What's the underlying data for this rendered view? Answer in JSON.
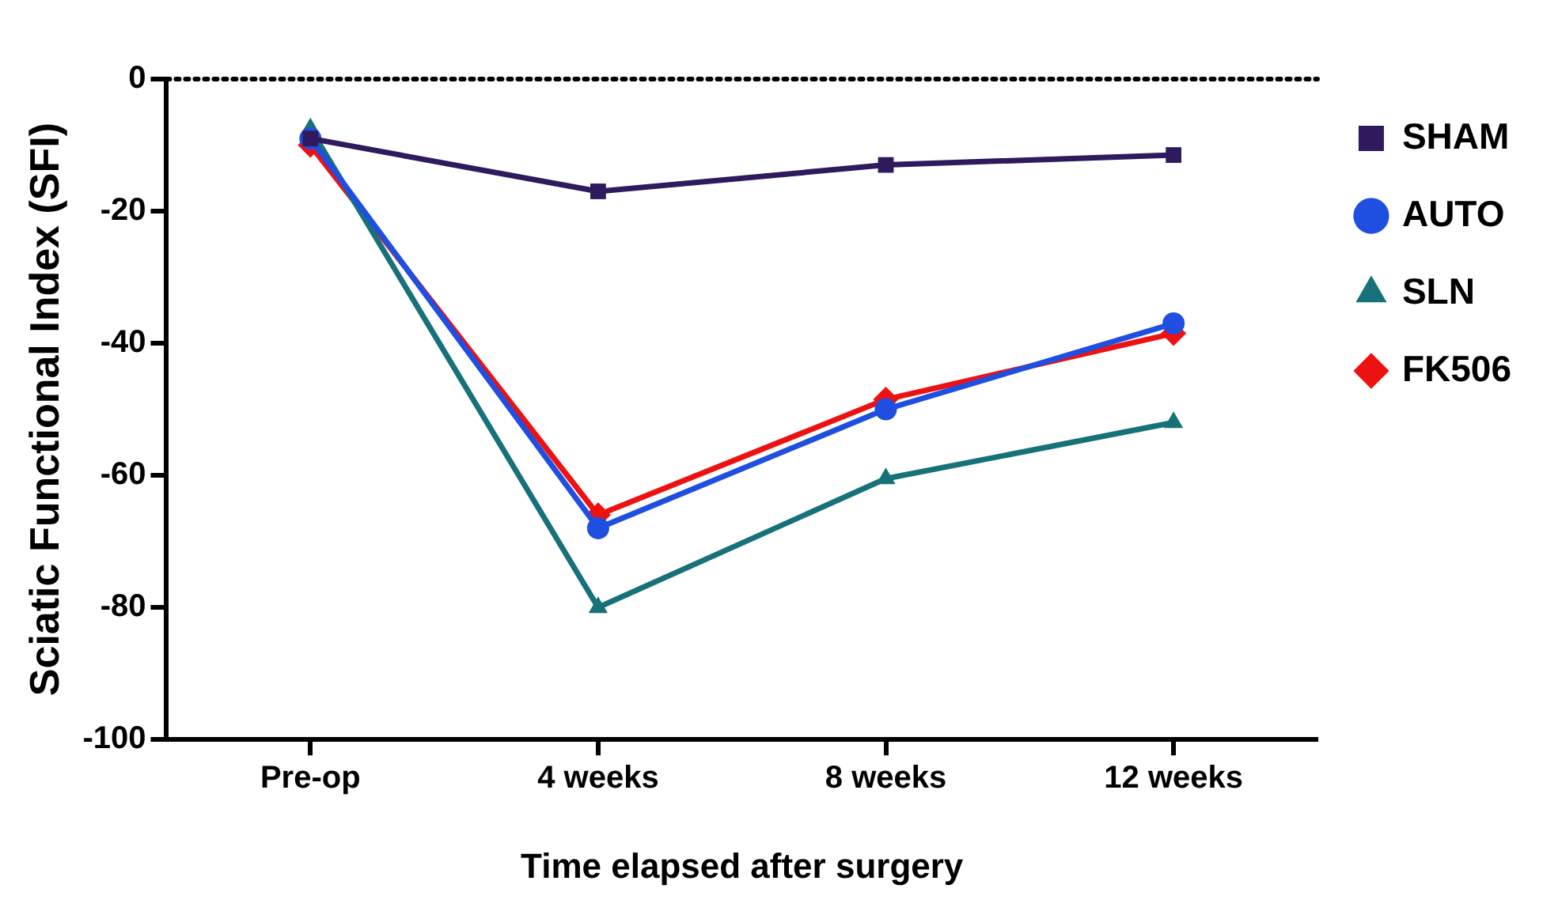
{
  "chart_data": {
    "type": "line",
    "xlabel": "Time elapsed after surgery",
    "ylabel": "Sciatic Functional Index (SFI)",
    "categories": [
      "Pre-op",
      "4 weeks",
      "8 weeks",
      "12 weeks"
    ],
    "series": [
      {
        "name": "SHAM",
        "color": "#2e1a5c",
        "marker": "square",
        "values": [
          -9,
          -17,
          -13,
          -11.5
        ]
      },
      {
        "name": "AUTO",
        "color": "#1f4fe0",
        "marker": "circle",
        "values": [
          -9,
          -68,
          -50,
          -37
        ]
      },
      {
        "name": "SLN",
        "color": "#167278",
        "marker": "triangle",
        "values": [
          -7.5,
          -80,
          -60.5,
          -52
        ]
      },
      {
        "name": "FK506",
        "color": "#ee1111",
        "marker": "diamond",
        "values": [
          -10,
          -66,
          -48.5,
          -38.5
        ]
      }
    ],
    "ylim": [
      -100,
      0
    ],
    "yticks": [
      -100,
      -80,
      -60,
      -40,
      -20,
      0
    ],
    "ref_lines": [
      {
        "axis": "y",
        "value": 0,
        "color": "#000000",
        "line_style": "dotted"
      }
    ],
    "grid": false,
    "legend": "right",
    "line_style": "solid"
  }
}
